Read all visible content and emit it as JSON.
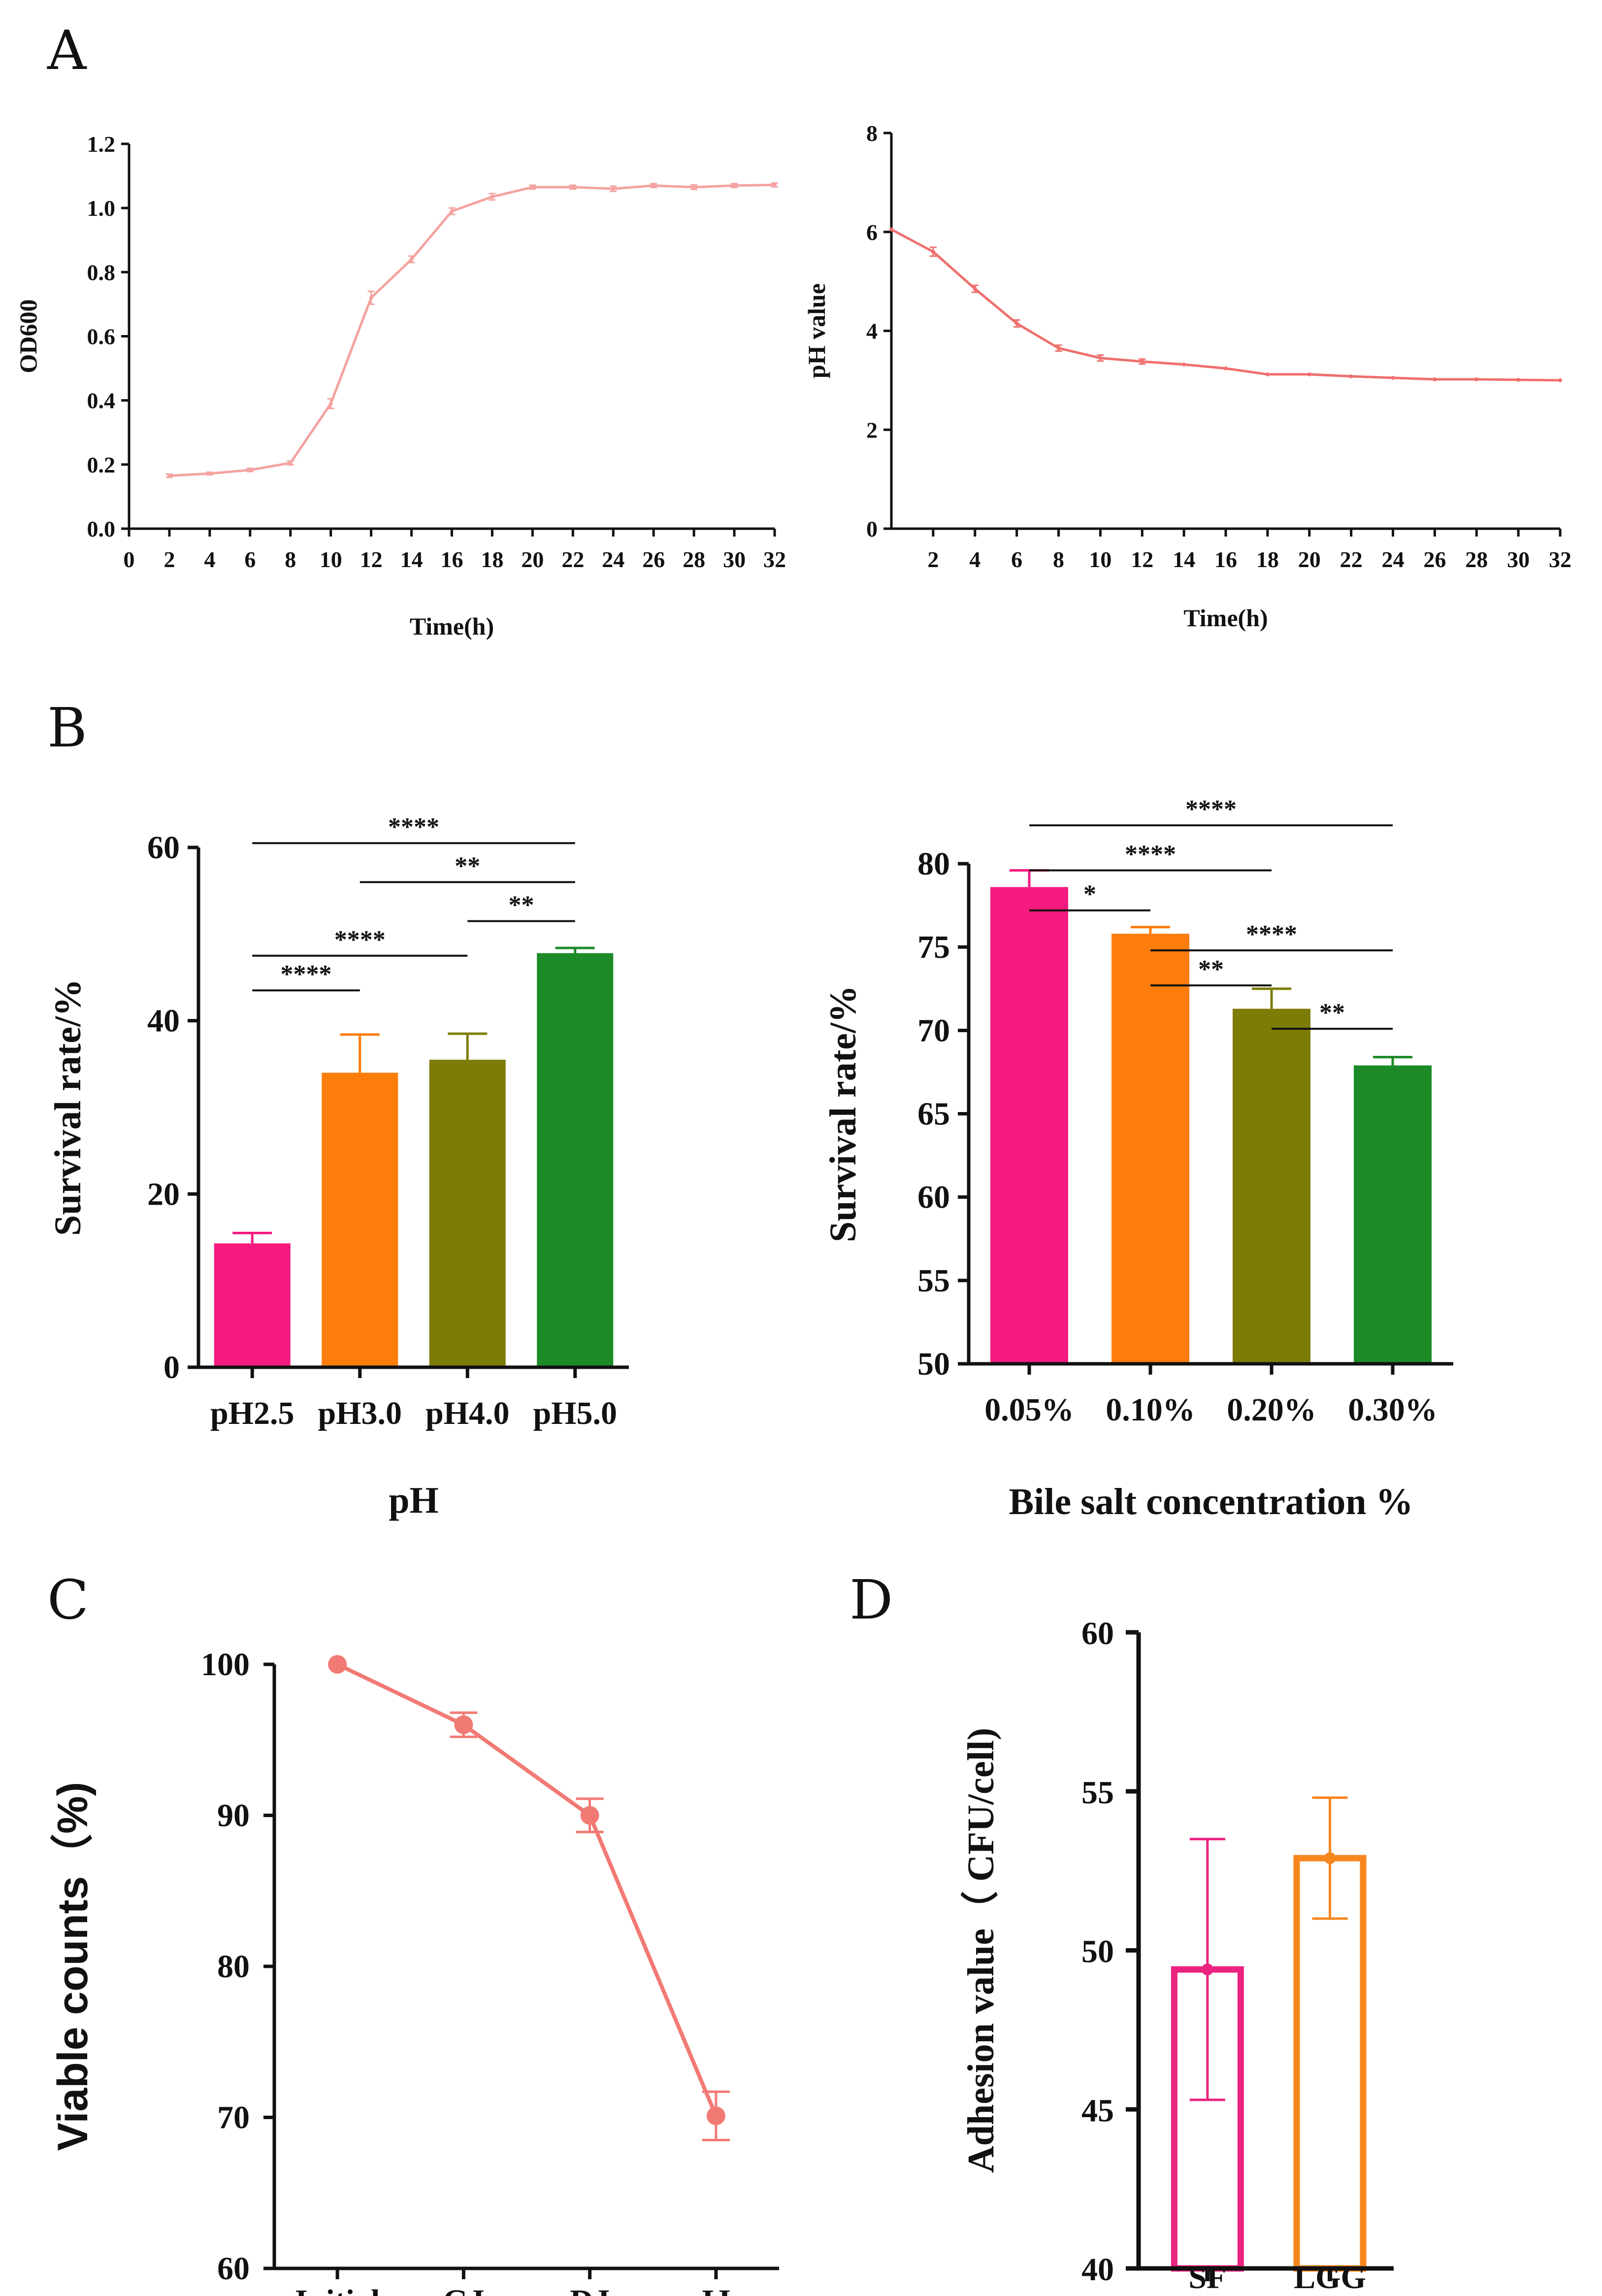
{
  "panel_labels": {
    "a": "A",
    "b": "B",
    "c": "C",
    "d": "D"
  },
  "chart_data": [
    {
      "id": "A1",
      "type": "line",
      "title": "",
      "xlabel": "Time(h)",
      "ylabel": "OD600",
      "xlim": [
        0,
        32
      ],
      "ylim": [
        0,
        1.2
      ],
      "xticks": [
        0,
        2,
        4,
        6,
        8,
        10,
        12,
        14,
        16,
        18,
        20,
        22,
        24,
        26,
        28,
        30,
        32
      ],
      "yticks": [
        0.0,
        0.2,
        0.4,
        0.6,
        0.8,
        1.0,
        1.2
      ],
      "ytick_labels": [
        "0.0",
        "0.2",
        "0.4",
        "0.6",
        "0.8",
        "1.0",
        "1.2"
      ],
      "color": "#f4a3a0",
      "series": [
        {
          "name": "OD600",
          "x": [
            2,
            4,
            6,
            8,
            10,
            12,
            14,
            16,
            18,
            20,
            22,
            24,
            26,
            28,
            30,
            32
          ],
          "y": [
            0.165,
            0.172,
            0.183,
            0.205,
            0.39,
            0.72,
            0.84,
            0.99,
            1.035,
            1.065,
            1.065,
            1.06,
            1.07,
            1.065,
            1.07,
            1.072
          ],
          "err": [
            0.005,
            0.004,
            0.005,
            0.006,
            0.015,
            0.02,
            0.01,
            0.01,
            0.01,
            0.006,
            0.006,
            0.008,
            0.006,
            0.007,
            0.006,
            0.006
          ]
        }
      ]
    },
    {
      "id": "A2",
      "type": "line",
      "title": "",
      "xlabel": "Time(h)",
      "ylabel": "pH value",
      "xlim": [
        0,
        32
      ],
      "ylim": [
        0,
        8
      ],
      "xticks": [
        2,
        4,
        6,
        8,
        10,
        12,
        14,
        16,
        18,
        20,
        22,
        24,
        26,
        28,
        30,
        32
      ],
      "yticks": [
        0,
        2,
        4,
        6,
        8
      ],
      "ytick_labels": [
        "0",
        "2",
        "4",
        "6",
        "8"
      ],
      "color": "#ef6f6c",
      "series": [
        {
          "name": "pH value",
          "x": [
            0,
            2,
            4,
            6,
            8,
            10,
            12,
            14,
            16,
            18,
            20,
            22,
            24,
            26,
            28,
            30,
            32
          ],
          "y": [
            6.05,
            5.6,
            4.85,
            4.15,
            3.65,
            3.45,
            3.38,
            3.32,
            3.24,
            3.12,
            3.12,
            3.08,
            3.05,
            3.02,
            3.02,
            3.01,
            3.0
          ],
          "err": [
            0,
            0.09,
            0.07,
            0.07,
            0.06,
            0.06,
            0.05,
            0,
            0,
            0,
            0,
            0,
            0,
            0,
            0,
            0,
            0
          ]
        }
      ]
    },
    {
      "id": "B1",
      "type": "bar",
      "title": "",
      "xlabel": "pH",
      "ylabel": "Survival rate/%",
      "ylim": [
        0,
        60
      ],
      "yticks": [
        0,
        20,
        40,
        60
      ],
      "ytick_labels": [
        "0",
        "20",
        "40",
        "60"
      ],
      "categories": [
        "pH2.5",
        "pH3.0",
        "pH4.0",
        "pH5.0"
      ],
      "values": [
        14.3,
        34.0,
        35.5,
        47.8
      ],
      "err": [
        1.2,
        4.4,
        3.0,
        0.6
      ],
      "colors": [
        "#f51a80",
        "#fd7d0c",
        "#7d7c07",
        "#1c8b27"
      ],
      "significance": [
        {
          "from": 0,
          "to": 1,
          "label": "****",
          "y": 43.5
        },
        {
          "from": 0,
          "to": 2,
          "label": "****",
          "y": 47.5
        },
        {
          "from": 2,
          "to": 3,
          "label": "**",
          "y": 51.5
        },
        {
          "from": 1,
          "to": 3,
          "label": "**",
          "y": 56.0
        },
        {
          "from": 0,
          "to": 3,
          "label": "****",
          "y": 60.5
        }
      ]
    },
    {
      "id": "B2",
      "type": "bar",
      "title": "",
      "xlabel": "Bile salt concentration %",
      "ylabel": "Survival rate/%",
      "ylim": [
        50,
        80
      ],
      "yticks": [
        50,
        55,
        60,
        65,
        70,
        75,
        80
      ],
      "ytick_labels": [
        "50",
        "55",
        "60",
        "65",
        "70",
        "75",
        "80"
      ],
      "categories": [
        "0.05%",
        "0.10%",
        "0.20%",
        "0.30%"
      ],
      "values": [
        78.6,
        75.8,
        71.3,
        67.9
      ],
      "err": [
        1.0,
        0.4,
        1.2,
        0.5
      ],
      "colors": [
        "#f51a80",
        "#fd7d0c",
        "#7d7c07",
        "#1c8b27"
      ],
      "significance": [
        {
          "from": 2,
          "to": 3,
          "label": "**",
          "y": 70.1
        },
        {
          "from": 1,
          "to": 2,
          "label": "**",
          "y": 72.7
        },
        {
          "from": 1,
          "to": 3,
          "label": "****",
          "y": 74.8
        },
        {
          "from": 0,
          "to": 1,
          "label": "*",
          "y": 77.2
        },
        {
          "from": 0,
          "to": 2,
          "label": "****",
          "y": 79.6
        },
        {
          "from": 0,
          "to": 3,
          "label": "****",
          "y": 82.3
        }
      ]
    },
    {
      "id": "C",
      "type": "line",
      "title": "",
      "xlabel": "",
      "ylabel": "Viable counts（%)",
      "ylim": [
        60,
        100
      ],
      "yticks": [
        60,
        70,
        80,
        90,
        100
      ],
      "ytick_labels": [
        "60",
        "70",
        "80",
        "90",
        "100"
      ],
      "categories": [
        "Initial",
        "GJ",
        "DJ",
        "IJ"
      ],
      "color": "#f27a74",
      "series": [
        {
          "name": "Viable counts",
          "values": [
            100,
            96,
            90,
            70.1
          ],
          "err": [
            0,
            0.8,
            1.1,
            1.6
          ]
        }
      ]
    },
    {
      "id": "D",
      "type": "bar",
      "title": "",
      "xlabel": "",
      "ylabel": "Adhesion value（ CFU/cell)",
      "ylim": [
        40,
        60
      ],
      "yticks": [
        40,
        45,
        50,
        55,
        60
      ],
      "ytick_labels": [
        "40",
        "45",
        "50",
        "55",
        "60"
      ],
      "categories": [
        "SF",
        "LGG"
      ],
      "values": [
        49.4,
        52.9
      ],
      "err": [
        4.1,
        1.9
      ],
      "colors": [
        "#ea2380",
        "#f6861e"
      ]
    }
  ]
}
